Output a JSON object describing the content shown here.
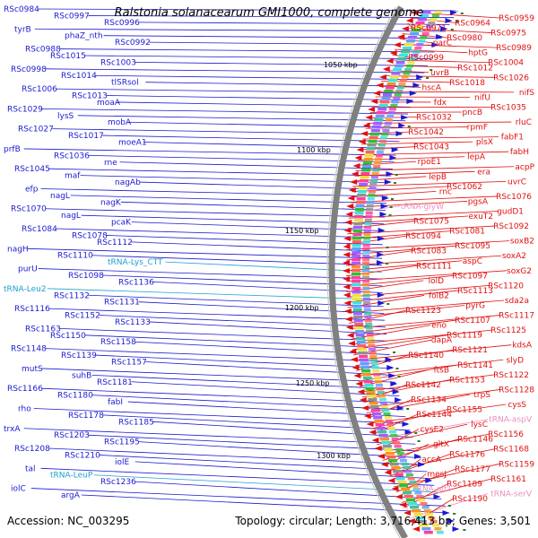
{
  "title": "Ralstonia solanacearum GMI1000, complete genome",
  "footer": {
    "accession": "Accession: NC_003295",
    "stats": "Topology: circular; Length: 3,716,413 bp; Genes: 3,501"
  },
  "colors": {
    "forward": "#1a1ad0",
    "reverse": "#e01010",
    "trna_forward": "#20a0d0",
    "trna_reverse": "#e890c0",
    "backbone": "#808080"
  },
  "scale_ticks": [
    "1050 kbp",
    "1100 kbp",
    "1150 kbp",
    "1200 kbp",
    "1250 kbp",
    "1300 kbp"
  ],
  "left_labels": [
    {
      "text": "RSc0984",
      "kind": "f"
    },
    {
      "text": "RSc0997",
      "kind": "f"
    },
    {
      "text": "RSc0996",
      "kind": "f"
    },
    {
      "text": "tyrB",
      "kind": "f"
    },
    {
      "text": "phaZ_nth",
      "kind": "f"
    },
    {
      "text": "RSc0992",
      "kind": "f"
    },
    {
      "text": "RSc0988",
      "kind": "f"
    },
    {
      "text": "RSc1015",
      "kind": "f"
    },
    {
      "text": "RSc1003",
      "kind": "f"
    },
    {
      "text": "RSc0998",
      "kind": "f"
    },
    {
      "text": "RSc1014",
      "kind": "f"
    },
    {
      "text": "tlSRsol",
      "kind": "f"
    },
    {
      "text": "RSc1006",
      "kind": "f"
    },
    {
      "text": "RSc1013",
      "kind": "f"
    },
    {
      "text": "moaA",
      "kind": "f"
    },
    {
      "text": "RSc1029",
      "kind": "f"
    },
    {
      "text": "lysS",
      "kind": "f"
    },
    {
      "text": "mobA",
      "kind": "f"
    },
    {
      "text": "RSc1027",
      "kind": "f"
    },
    {
      "text": "RSc1017",
      "kind": "f"
    },
    {
      "text": "moeA1",
      "kind": "f"
    },
    {
      "text": "prfB",
      "kind": "f"
    },
    {
      "text": "RSc1036",
      "kind": "f"
    },
    {
      "text": "rne",
      "kind": "f"
    },
    {
      "text": "RSc1045",
      "kind": "f"
    },
    {
      "text": "maf",
      "kind": "f"
    },
    {
      "text": "nagAb",
      "kind": "f"
    },
    {
      "text": "efp",
      "kind": "f"
    },
    {
      "text": "nagL",
      "kind": "f"
    },
    {
      "text": "nagK",
      "kind": "f"
    },
    {
      "text": "RSc1070",
      "kind": "f"
    },
    {
      "text": "nagL",
      "kind": "f"
    },
    {
      "text": "pcaK",
      "kind": "f"
    },
    {
      "text": "RSc1084",
      "kind": "f"
    },
    {
      "text": "RSc1078",
      "kind": "f"
    },
    {
      "text": "RSc1112",
      "kind": "f"
    },
    {
      "text": "nagH",
      "kind": "f"
    },
    {
      "text": "RSc1110",
      "kind": "f"
    },
    {
      "text": "tRNA-Lys_CTT",
      "kind": "t"
    },
    {
      "text": "purU",
      "kind": "f"
    },
    {
      "text": "RSc1098",
      "kind": "f"
    },
    {
      "text": "RSc1136",
      "kind": "f"
    },
    {
      "text": "tRNA-Leu2",
      "kind": "t"
    },
    {
      "text": "RSc1132",
      "kind": "f"
    },
    {
      "text": "RSc1131",
      "kind": "f"
    },
    {
      "text": "RSc1116",
      "kind": "f"
    },
    {
      "text": "RSc1152",
      "kind": "f"
    },
    {
      "text": "RSc1133",
      "kind": "f"
    },
    {
      "text": "RSc1163",
      "kind": "f"
    },
    {
      "text": "RSc1150",
      "kind": "f"
    },
    {
      "text": "RSc1158",
      "kind": "f"
    },
    {
      "text": "RSc1148",
      "kind": "f"
    },
    {
      "text": "RSc1139",
      "kind": "f"
    },
    {
      "text": "RSc1157",
      "kind": "f"
    },
    {
      "text": "mutS",
      "kind": "f"
    },
    {
      "text": "suhB",
      "kind": "f"
    },
    {
      "text": "RSc1181",
      "kind": "f"
    },
    {
      "text": "RSc1166",
      "kind": "f"
    },
    {
      "text": "RSc1180",
      "kind": "f"
    },
    {
      "text": "fabI",
      "kind": "f"
    },
    {
      "text": "rho",
      "kind": "f"
    },
    {
      "text": "RSc1178",
      "kind": "f"
    },
    {
      "text": "RSc1185",
      "kind": "f"
    },
    {
      "text": "trxA",
      "kind": "f"
    },
    {
      "text": "RSc1203",
      "kind": "f"
    },
    {
      "text": "RSc1195",
      "kind": "f"
    },
    {
      "text": "RSc1208",
      "kind": "f"
    },
    {
      "text": "RSc1210",
      "kind": "f"
    },
    {
      "text": "iolE",
      "kind": "f"
    },
    {
      "text": "tal",
      "kind": "f"
    },
    {
      "text": "tRNA-LeuP",
      "kind": "t"
    },
    {
      "text": "RSc1236",
      "kind": "f"
    },
    {
      "text": "iolC",
      "kind": "f"
    },
    {
      "text": "argA",
      "kind": "f"
    }
  ],
  "right_labels": [
    {
      "text": "RSc0959",
      "kind": "r"
    },
    {
      "text": "RSc0964",
      "kind": "r"
    },
    {
      "text": "RSc0971",
      "kind": "r"
    },
    {
      "text": "RSc0975",
      "kind": "r"
    },
    {
      "text": "RSc0980",
      "kind": "r"
    },
    {
      "text": "parC",
      "kind": "r"
    },
    {
      "text": "RSc0989",
      "kind": "r"
    },
    {
      "text": "hptG",
      "kind": "r"
    },
    {
      "text": "RSc0999",
      "kind": "r"
    },
    {
      "text": "RSc1004",
      "kind": "r"
    },
    {
      "text": "RSc1012",
      "kind": "r"
    },
    {
      "text": "uvrB",
      "kind": "r"
    },
    {
      "text": "RSc1026",
      "kind": "r"
    },
    {
      "text": "RSc1018",
      "kind": "r"
    },
    {
      "text": "hscA",
      "kind": "r"
    },
    {
      "text": "nifS",
      "kind": "r"
    },
    {
      "text": "nifU",
      "kind": "r"
    },
    {
      "text": "fdx",
      "kind": "r"
    },
    {
      "text": "RSc1035",
      "kind": "r"
    },
    {
      "text": "pncB",
      "kind": "r"
    },
    {
      "text": "RSc1032",
      "kind": "r"
    },
    {
      "text": "rluC",
      "kind": "r"
    },
    {
      "text": "rpmF",
      "kind": "r"
    },
    {
      "text": "RSc1042",
      "kind": "r"
    },
    {
      "text": "fabF1",
      "kind": "r"
    },
    {
      "text": "plsX",
      "kind": "r"
    },
    {
      "text": "RSc1043",
      "kind": "r"
    },
    {
      "text": "fabH",
      "kind": "r"
    },
    {
      "text": "lepA",
      "kind": "r"
    },
    {
      "text": "rpoE1",
      "kind": "r"
    },
    {
      "text": "acpP",
      "kind": "r"
    },
    {
      "text": "era",
      "kind": "r"
    },
    {
      "text": "lepB",
      "kind": "r"
    },
    {
      "text": "uvrC",
      "kind": "r"
    },
    {
      "text": "RSc1062",
      "kind": "r"
    },
    {
      "text": "rnc",
      "kind": "r"
    },
    {
      "text": "RSc1076",
      "kind": "r"
    },
    {
      "text": "pgsA",
      "kind": "r"
    },
    {
      "text": "tRNA-glyW",
      "kind": "s"
    },
    {
      "text": "gudD1",
      "kind": "r"
    },
    {
      "text": "exuT2",
      "kind": "r"
    },
    {
      "text": "RSc1075",
      "kind": "r"
    },
    {
      "text": "RSc1092",
      "kind": "r"
    },
    {
      "text": "RSc1081",
      "kind": "r"
    },
    {
      "text": "RSc1094",
      "kind": "r"
    },
    {
      "text": "soxB2",
      "kind": "r"
    },
    {
      "text": "RSc1095",
      "kind": "r"
    },
    {
      "text": "RSc1083",
      "kind": "r"
    },
    {
      "text": "soxA2",
      "kind": "r"
    },
    {
      "text": "aspC",
      "kind": "r"
    },
    {
      "text": "RSc1111",
      "kind": "r"
    },
    {
      "text": "soxG2",
      "kind": "r"
    },
    {
      "text": "RSc1097",
      "kind": "r"
    },
    {
      "text": "lolD",
      "kind": "r"
    },
    {
      "text": "RSc1120",
      "kind": "r"
    },
    {
      "text": "RSc1113",
      "kind": "r"
    },
    {
      "text": "folB2",
      "kind": "r"
    },
    {
      "text": "sda2a",
      "kind": "r"
    },
    {
      "text": "pyrG",
      "kind": "r"
    },
    {
      "text": "RSc1123",
      "kind": "r"
    },
    {
      "text": "RSc1117",
      "kind": "r"
    },
    {
      "text": "RSc1107",
      "kind": "r"
    },
    {
      "text": "eno",
      "kind": "r"
    },
    {
      "text": "RSc1125",
      "kind": "r"
    },
    {
      "text": "RSc1119",
      "kind": "r"
    },
    {
      "text": "dapA",
      "kind": "r"
    },
    {
      "text": "kdsA",
      "kind": "r"
    },
    {
      "text": "RSc1121",
      "kind": "r"
    },
    {
      "text": "RSc1140",
      "kind": "r"
    },
    {
      "text": "slyD",
      "kind": "r"
    },
    {
      "text": "RSc1141",
      "kind": "r"
    },
    {
      "text": "ftsB",
      "kind": "r"
    },
    {
      "text": "RSc1122",
      "kind": "r"
    },
    {
      "text": "RSc1153",
      "kind": "r"
    },
    {
      "text": "RSc1142",
      "kind": "r"
    },
    {
      "text": "RSc1128",
      "kind": "r"
    },
    {
      "text": "trpS",
      "kind": "r"
    },
    {
      "text": "RSc1134",
      "kind": "r"
    },
    {
      "text": "cysS",
      "kind": "r"
    },
    {
      "text": "RSc1155",
      "kind": "r"
    },
    {
      "text": "RSc1144",
      "kind": "r"
    },
    {
      "text": "tRNA-aspV",
      "kind": "s"
    },
    {
      "text": "lysC",
      "kind": "r"
    },
    {
      "text": "cysE2",
      "kind": "r"
    },
    {
      "text": "RSc1156",
      "kind": "r"
    },
    {
      "text": "RSc1146",
      "kind": "r"
    },
    {
      "text": "gltX",
      "kind": "r"
    },
    {
      "text": "RSc1168",
      "kind": "r"
    },
    {
      "text": "RSc1176",
      "kind": "r"
    },
    {
      "text": "accA",
      "kind": "r"
    },
    {
      "text": "RSc1159",
      "kind": "r"
    },
    {
      "text": "RSc1177",
      "kind": "r"
    },
    {
      "text": "mesJ",
      "kind": "r"
    },
    {
      "text": "RSc1161",
      "kind": "r"
    },
    {
      "text": "RSc1189",
      "kind": "r"
    },
    {
      "text": "tRNA-gltT",
      "kind": "s"
    },
    {
      "text": "tRNA-serV",
      "kind": "s"
    },
    {
      "text": "RSc1190",
      "kind": "r"
    }
  ]
}
